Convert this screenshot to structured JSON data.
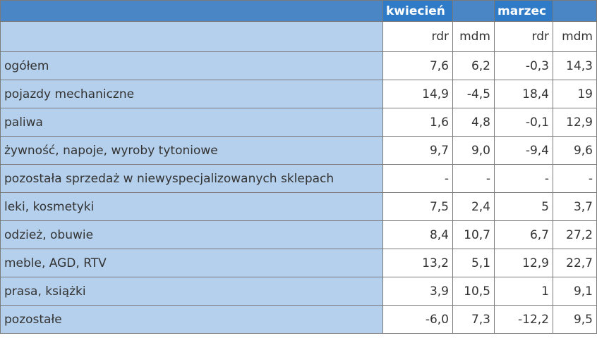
{
  "header": {
    "month1": "kwiecień",
    "month2": "marzec",
    "sub": [
      "rdr",
      "mdm",
      "rdr",
      "mdm"
    ]
  },
  "rows": [
    {
      "label": "ogółem",
      "values": [
        "7,6",
        "6,2",
        "-0,3",
        "14,3"
      ]
    },
    {
      "label": "pojazdy mechaniczne",
      "values": [
        "14,9",
        "-4,5",
        "18,4",
        "19"
      ]
    },
    {
      "label": "paliwa",
      "values": [
        "1,6",
        "4,8",
        "-0,1",
        "12,9"
      ]
    },
    {
      "label": "żywność, napoje, wyroby tytoniowe",
      "values": [
        "9,7",
        "9,0",
        "-9,4",
        "9,6"
      ]
    },
    {
      "label": "pozostała sprzedaż w niewyspecjalizowanych sklepach",
      "values": [
        "-",
        "-",
        "-",
        "-"
      ]
    },
    {
      "label": "leki, kosmetyki",
      "values": [
        "7,5",
        "2,4",
        "5",
        "3,7"
      ]
    },
    {
      "label": "odzież, obuwie",
      "values": [
        "8,4",
        "10,7",
        "6,7",
        "27,2"
      ]
    },
    {
      "label": "meble, AGD, RTV",
      "values": [
        "13,2",
        "5,1",
        "12,9",
        "22,7"
      ]
    },
    {
      "label": "prasa, książki",
      "values": [
        "3,9",
        "10,5",
        "1",
        "9,1"
      ]
    },
    {
      "label": "pozostałe",
      "values": [
        "-6,0",
        "7,3",
        "-12,2",
        "9,5"
      ]
    }
  ]
}
